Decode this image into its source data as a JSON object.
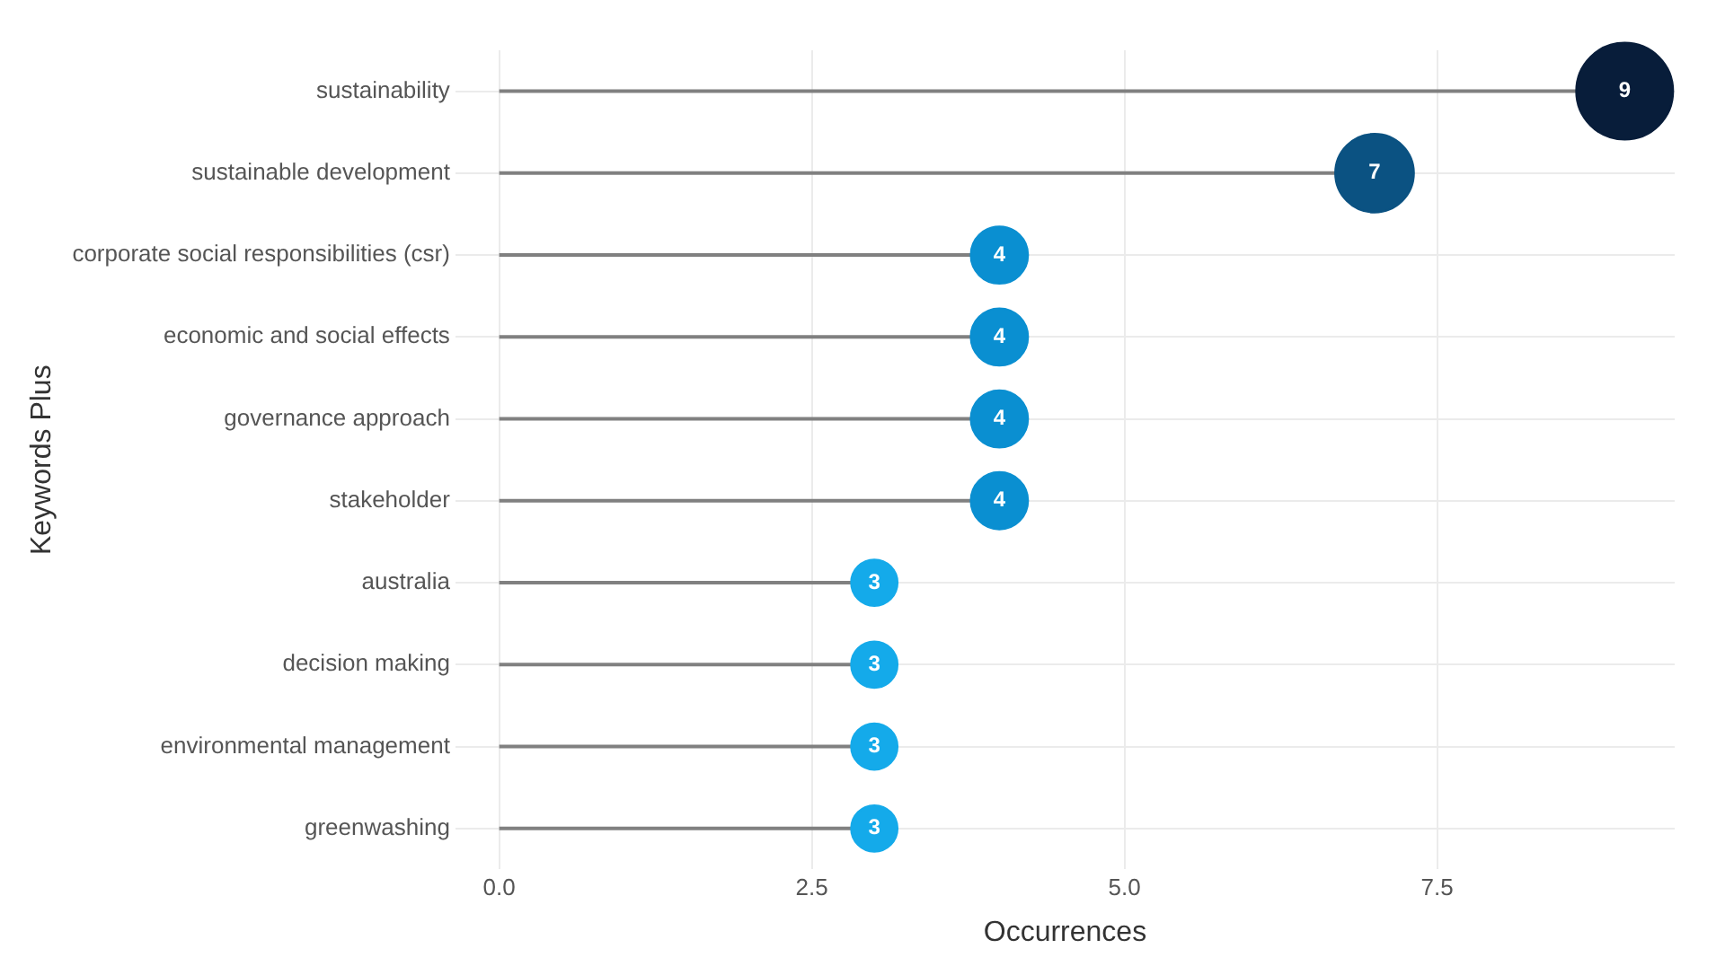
{
  "chart_data": {
    "type": "lollipop",
    "orientation": "horizontal",
    "xlabel": "Occurrences",
    "ylabel": "Keywords Plus",
    "categories": [
      "sustainability",
      "sustainable development",
      "corporate social responsibilities (csr)",
      "economic and social effects",
      "governance approach",
      "stakeholder",
      "australia",
      "decision making",
      "environmental management",
      "greenwashing"
    ],
    "values": [
      9,
      7,
      4,
      4,
      4,
      4,
      3,
      3,
      3,
      3
    ],
    "sizes": [
      1,
      0.66,
      0.35,
      0.35,
      0.35,
      0.35,
      0.23,
      0.23,
      0.23,
      0.23
    ],
    "colors": [
      "#081d3a",
      "#0b5282",
      "#0a8fd1",
      "#0a8fd1",
      "#0a8fd1",
      "#0a8fd1",
      "#14aaea",
      "#14aaea",
      "#14aaea",
      "#14aaea"
    ],
    "xlim": [
      -0.35,
      9.4
    ],
    "xticks": [
      {
        "value": 0,
        "label": "0.0"
      },
      {
        "value": 2.5,
        "label": "2.5"
      },
      {
        "value": 5,
        "label": "5.0"
      },
      {
        "value": 7.5,
        "label": "7.5"
      }
    ],
    "grid": true,
    "legend": false,
    "data_labels": true
  }
}
